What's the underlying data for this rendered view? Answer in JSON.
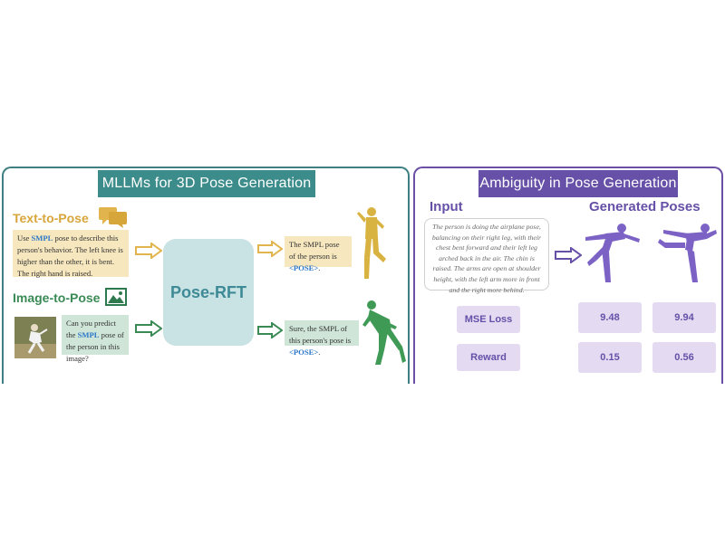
{
  "left": {
    "title": "MLLMs for 3D Pose Generation",
    "text_to_pose": {
      "label": "Text-to-Pose",
      "input_pre": "Use ",
      "input_hl": "SMPL",
      "input_post": " pose to describe this person's behavior. The left knee is higher than the other, it is bent. The right hand is raised.",
      "output_pre": "The SMPL pose of the person is ",
      "output_hl": "<POSE>",
      "output_post": "."
    },
    "image_to_pose": {
      "label": "Image-to-Pose",
      "question_pre": "Can you predict the ",
      "question_hl": "SMPL",
      "question_post": " pose of the person in this image?",
      "output_pre": "Sure, the SMPL of this person's pose is ",
      "output_hl": "<POSE>",
      "output_post": "."
    },
    "model_label": "Pose-RFT"
  },
  "right": {
    "title": "Ambiguity in Pose Generation",
    "input_label": "Input",
    "generated_label": "Generated Poses",
    "input_text": "The person is doing the airplane pose, balancing on their right leg, with their chest bent forward and their left leg arched back in the air. The chin is raised. The arms are open at shoulder height, with the left arm more in front and the right more behind.",
    "metrics": {
      "mse_label": "MSE Loss",
      "mse_values": [
        "9.48",
        "9.94"
      ],
      "reward_label": "Reward",
      "reward_values": [
        "0.15",
        "0.56"
      ]
    }
  },
  "colors": {
    "teal": "#3d8c8c",
    "purple": "#6650a8",
    "gold": "#d7a63b",
    "green": "#3a8a55"
  },
  "icons": [
    "speech-bubbles-icon",
    "image-icon"
  ]
}
